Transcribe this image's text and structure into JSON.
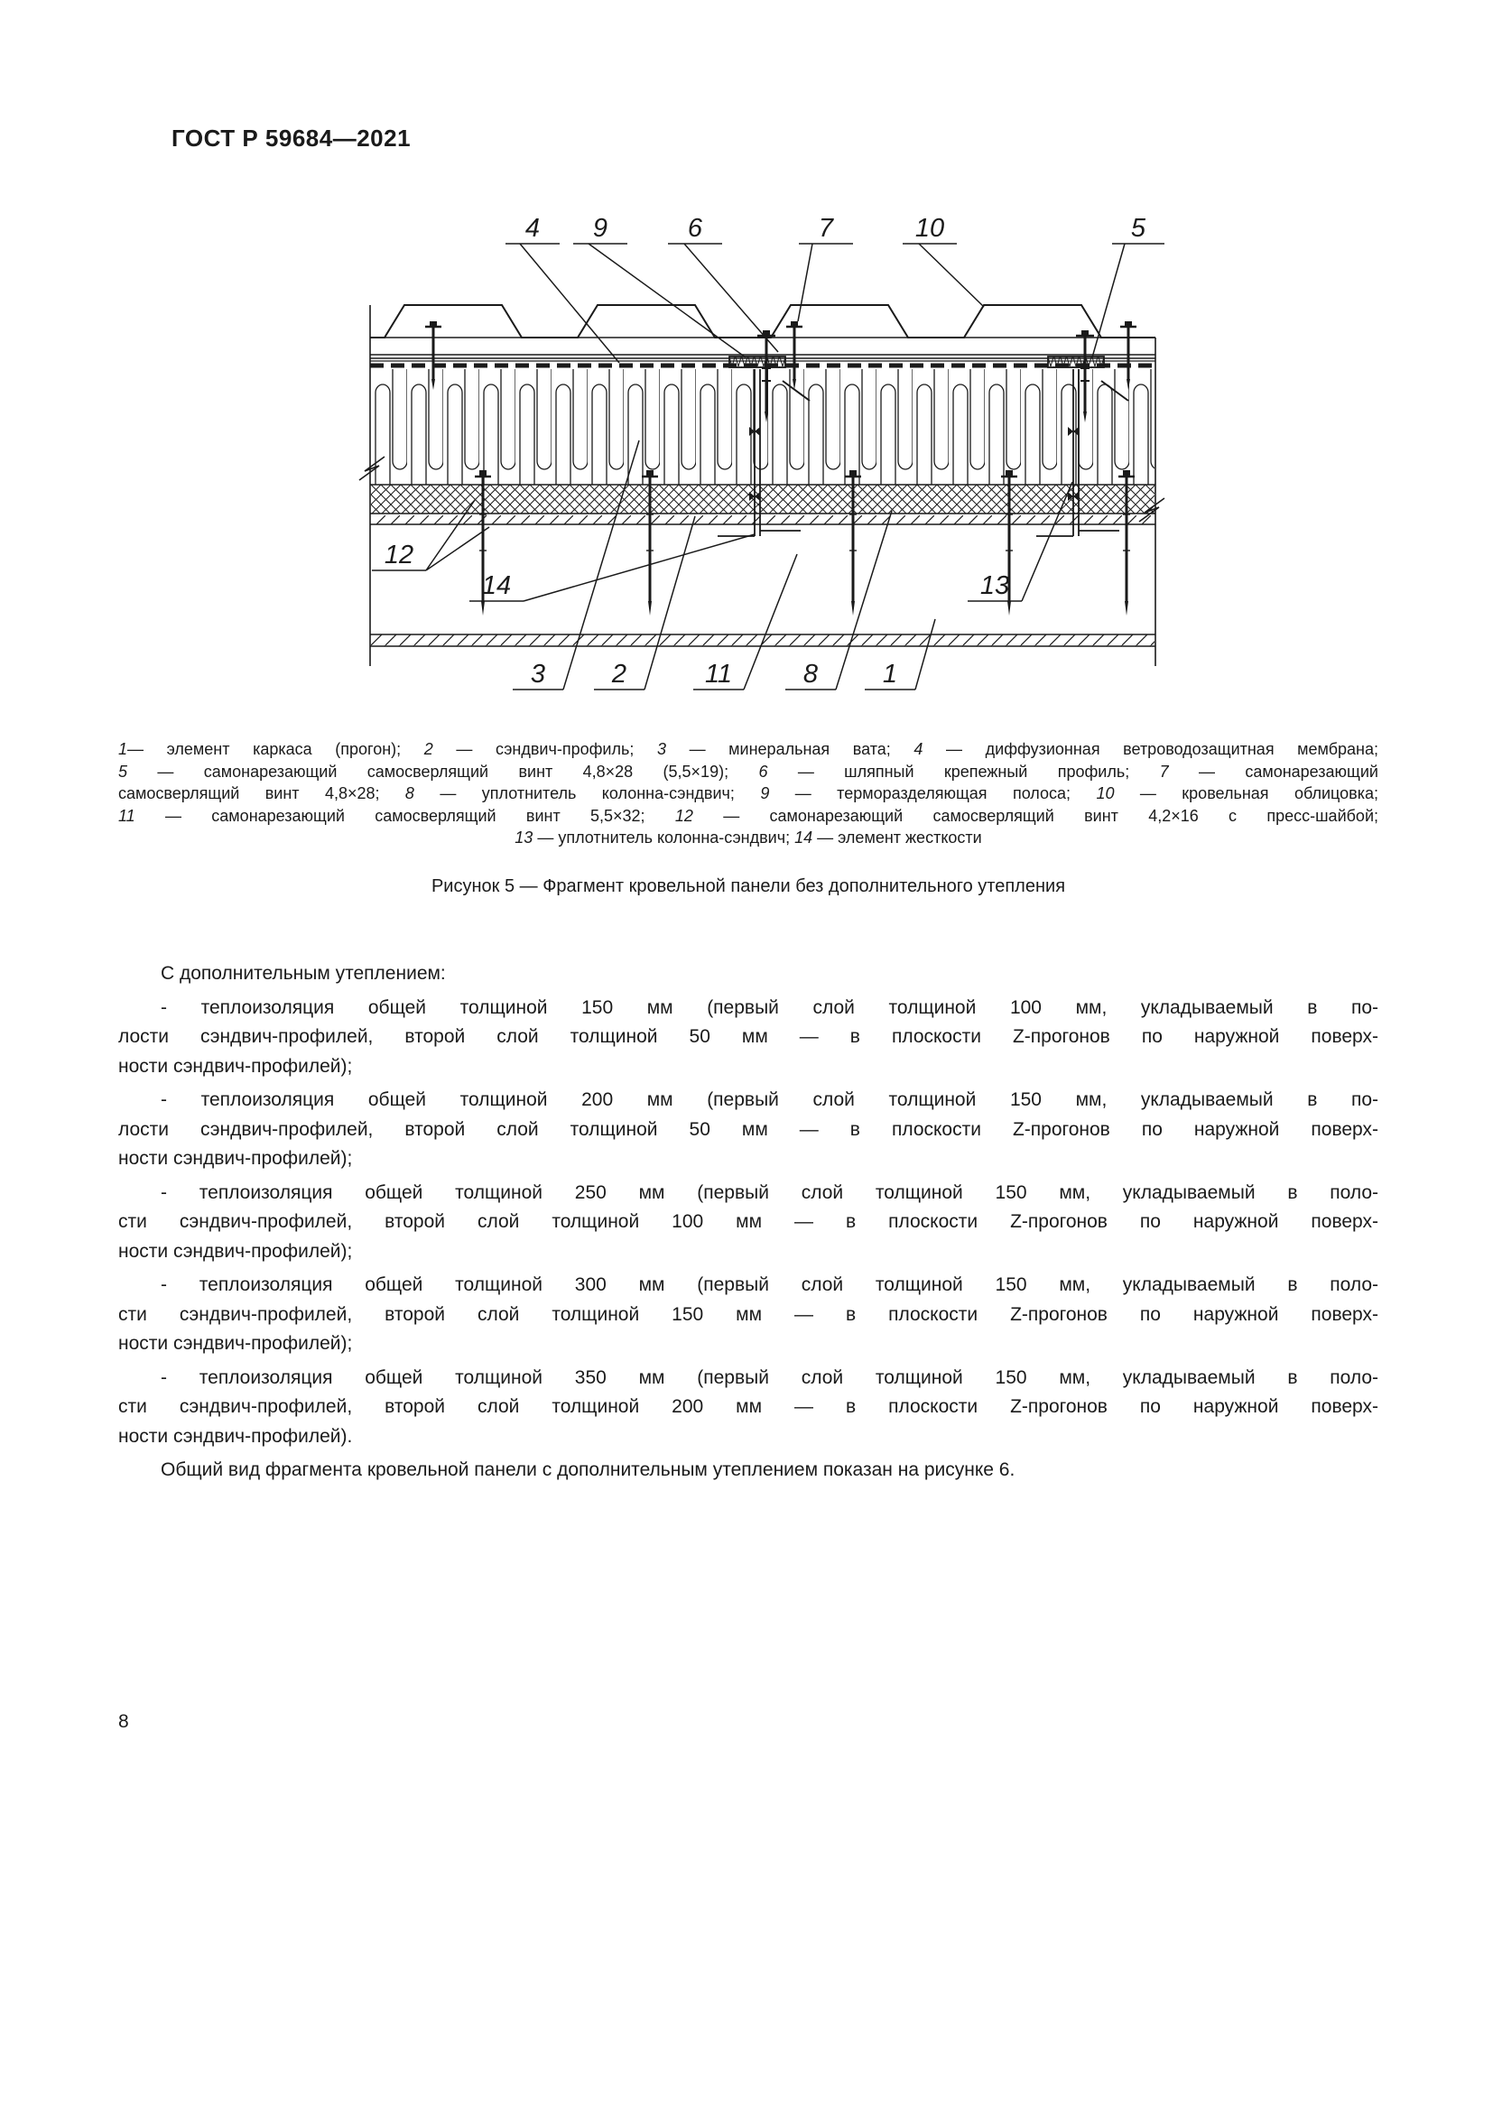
{
  "document": {
    "standard_code": "ГОСТ Р 59684—2021",
    "page_number": "8"
  },
  "figure": {
    "caption": "Рисунок 5 — Фрагмент кровельной панели без дополнительного утепления",
    "callouts": {
      "n1": "1",
      "n2": "2",
      "n3": "3",
      "n4": "4",
      "n5": "5",
      "n6": "6",
      "n7": "7",
      "n8": "8",
      "n9": "9",
      "n10": "10",
      "n11": "11",
      "n12": "12",
      "n13": "13",
      "n14": "14"
    },
    "legend_lines": [
      "1— элемент каркаса (прогон); 2 — сэндвич-профиль; 3 — минеральная вата; 4 — диффузионная ветроводозащитная мембрана;",
      "5 — самонарезающий самосверлящий винт 4,8×28 (5,5×19); 6 — шляпный крепежный профиль; 7 — самонарезающий",
      "самосверлящий винт 4,8×28; 8 — уплотнитель колонна-сэндвич; 9 — терморазделяющая полоса; 10 — кровельная облицовка;",
      "11 — самонарезающий самосверлящий винт 5,5×32; 12 — самонарезающий самосверлящий винт 4,2×16 с пресс-шайбой;",
      "13 — уплотнитель колонна-сэндвич; 14 — элемент жесткости"
    ],
    "legend_items": [
      {
        "num": "1",
        "label": "элемент каркаса (прогон)"
      },
      {
        "num": "2",
        "label": "сэндвич-профиль"
      },
      {
        "num": "3",
        "label": "минеральная вата"
      },
      {
        "num": "4",
        "label": "диффузионная ветроводозащитная мембрана"
      },
      {
        "num": "5",
        "label": "самонарезающий самосверлящий винт 4,8×28 (5,5×19)"
      },
      {
        "num": "6",
        "label": "шляпный крепежный профиль"
      },
      {
        "num": "7",
        "label": "самонарезающий самосверлящий винт 4,8×28"
      },
      {
        "num": "8",
        "label": "уплотнитель колонна-сэндвич"
      },
      {
        "num": "9",
        "label": "терморазделяющая полоса"
      },
      {
        "num": "10",
        "label": "кровельная облицовка"
      },
      {
        "num": "11",
        "label": "самонарезающий самосверлящий винт 5,5×32"
      },
      {
        "num": "12",
        "label": "самонарезающий самосверлящий винт 4,2×16 с пресс-шайбой"
      },
      {
        "num": "13",
        "label": "уплотнитель колонна-сэндвич"
      },
      {
        "num": "14",
        "label": "элемент жесткости"
      }
    ]
  },
  "body": {
    "paragraphs": [
      {
        "lines": [
          "С дополнительным утеплением:"
        ]
      },
      {
        "lines": [
          "- теплоизоляция общей толщиной 150 мм (первый слой толщиной 100 мм, укладываемый в по-",
          "лости сэндвич-профилей, второй слой толщиной 50 мм — в плоскости Z-прогонов по наружной поверх-",
          "ности сэндвич-профилей);"
        ]
      },
      {
        "lines": [
          "- теплоизоляция общей толщиной 200 мм (первый слой толщиной 150 мм, укладываемый в по-",
          "лости сэндвич-профилей, второй слой толщиной 50 мм — в плоскости Z-прогонов по наружной поверх-",
          "ности сэндвич-профилей);"
        ]
      },
      {
        "lines": [
          "- теплоизоляция общей толщиной 250 мм (первый слой толщиной 150 мм, укладываемый в поло-",
          "сти сэндвич-профилей, второй слой толщиной 100 мм — в плоскости Z-прогонов по наружной поверх-",
          "ности сэндвич-профилей);"
        ]
      },
      {
        "lines": [
          "- теплоизоляция общей толщиной 300 мм (первый слой толщиной 150 мм, укладываемый в поло-",
          "сти сэндвич-профилей, второй слой толщиной 150 мм — в плоскости Z-прогонов по наружной поверх-",
          "ности сэндвич-профилей);"
        ]
      },
      {
        "lines": [
          "- теплоизоляция общей толщиной 350 мм (первый слой толщиной 150 мм, укладываемый в поло-",
          "сти сэндвич-профилей, второй слой толщиной 200 мм — в плоскости Z-прогонов по наружной поверх-",
          "ности сэндвич-профилей)."
        ]
      },
      {
        "lines": [
          "Общий вид фрагмента кровельной панели с дополнительным утеплением показан на рисунке 6."
        ]
      }
    ]
  }
}
